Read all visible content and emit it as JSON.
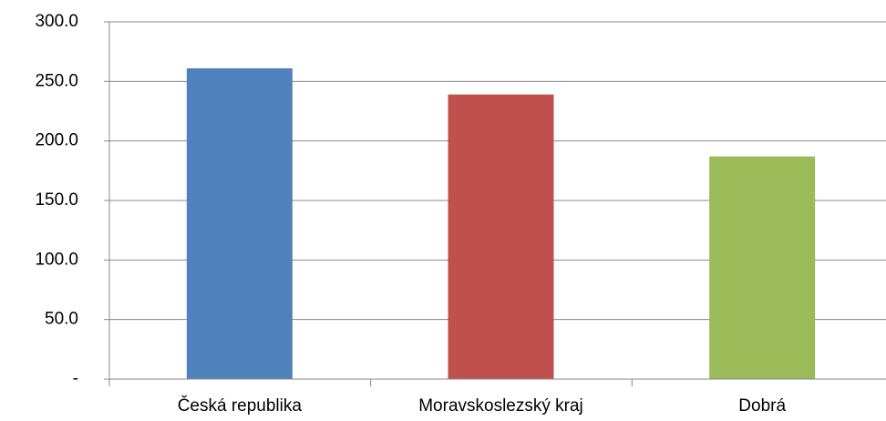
{
  "chart_data": {
    "type": "bar",
    "categories": [
      "Česká republika",
      "Moravskoslezský kraj",
      "Dobrá"
    ],
    "values": [
      261,
      239,
      187
    ],
    "colors": [
      "#4f81bd",
      "#c0504d",
      "#9bbb59"
    ],
    "ylim": [
      0,
      300
    ],
    "yticks": [
      {
        "value": 0,
        "label": "-"
      },
      {
        "value": 50,
        "label": "50.0"
      },
      {
        "value": 100,
        "label": "100.0"
      },
      {
        "value": 150,
        "label": "150.0"
      },
      {
        "value": 200,
        "label": "200.0"
      },
      {
        "value": 250,
        "label": "250.0"
      },
      {
        "value": 300,
        "label": "300.0"
      }
    ],
    "grid": true
  }
}
